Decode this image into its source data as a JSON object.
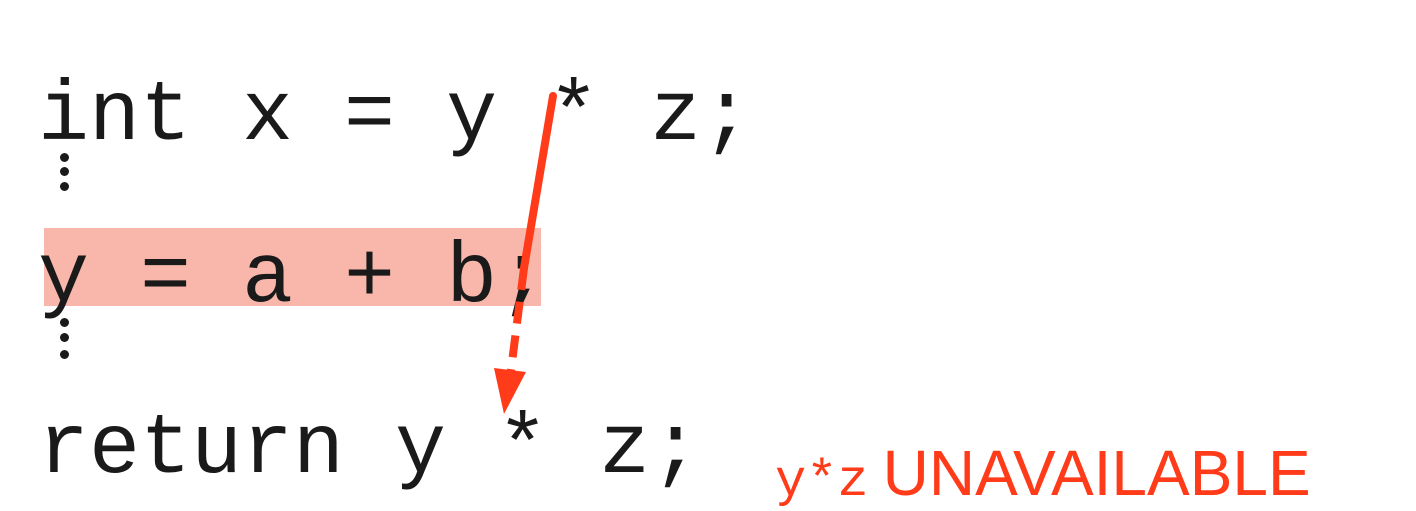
{
  "code": {
    "line1": "int x = y * z;",
    "line2": "y = a + b;",
    "line3": "return y * z;"
  },
  "annotation": {
    "expression": "y*z",
    "status": "UNAVAILABLE"
  },
  "colors": {
    "text": "#1a1a1a",
    "highlight": "#f9b7ab",
    "arrow": "#ff3b1a",
    "annotation": "#ff3b1a"
  }
}
